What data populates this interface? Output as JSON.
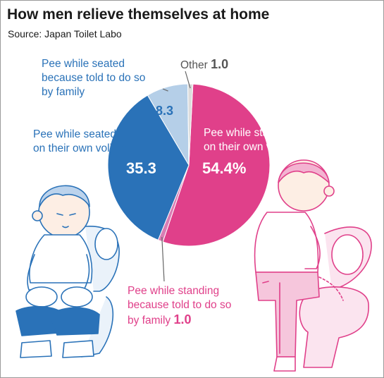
{
  "title": "How men relieve themselves at home",
  "source": "Source: Japan Toilet Labo",
  "chart_data": {
    "type": "pie",
    "title": "How men relieve themselves at home",
    "source": "Source: Japan Toilet Labo",
    "slices": [
      {
        "label": "Pee while standing on their own volition",
        "value": 54.4,
        "display": "54.4%",
        "color": "#e0408a"
      },
      {
        "label": "Pee while standing because told to do so by family",
        "value": 1.0,
        "display": "1.0",
        "color": "#d97db4"
      },
      {
        "label": "Pee while seated on their own volition",
        "value": 35.3,
        "display": "35.3",
        "color": "#2a72b8"
      },
      {
        "label": "Pee while seated because told to do so by family",
        "value": 8.3,
        "display": "8.3",
        "color": "#b5cfe8"
      },
      {
        "label": "Other",
        "value": 1.0,
        "display": "1.0",
        "color": "#dcdcdc"
      }
    ]
  },
  "labels": {
    "other_text": "Other",
    "seated_family_text": [
      "Pee while seated",
      "because told to do so",
      "by family"
    ],
    "seated_own_text": [
      "Pee while seated",
      "on their own volition"
    ],
    "standing_own_text": [
      "Pee while standing",
      "on their own volition"
    ],
    "standing_family_text": [
      "Pee while standing",
      "because told to do so",
      "by family"
    ]
  },
  "illustrations": {
    "left": "boy-sitting-on-toilet-icon",
    "right": "boy-standing-at-toilet-icon",
    "colors": {
      "left": "#2a72b8",
      "right": "#e0408a"
    }
  }
}
